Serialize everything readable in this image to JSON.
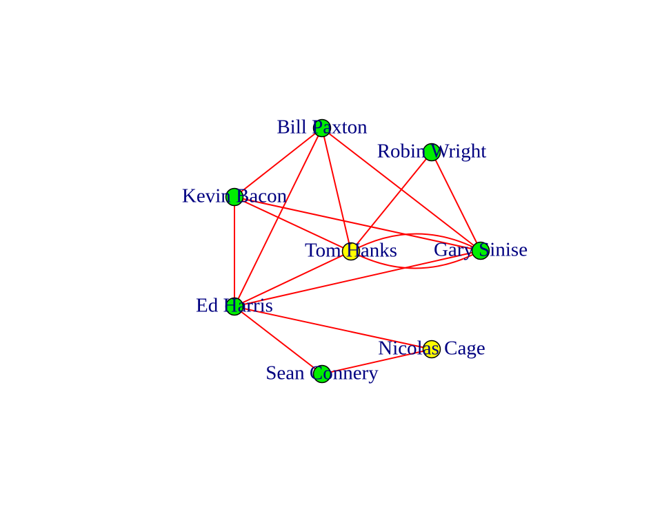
{
  "network": {
    "colors": {
      "edge": "#ff0000",
      "label": "#000080",
      "node_default": "#00ee00",
      "node_highlight": "#ffff00",
      "node_border": "#000000"
    },
    "nodes": [
      {
        "id": "bill_paxton",
        "label": "Bill Paxton",
        "color": "#00ee00"
      },
      {
        "id": "robin_wright",
        "label": "Robin Wright",
        "color": "#00ee00"
      },
      {
        "id": "kevin_bacon",
        "label": "Kevin Bacon",
        "color": "#00ee00"
      },
      {
        "id": "tom_hanks",
        "label": "Tom Hanks",
        "color": "#ffff00"
      },
      {
        "id": "gary_sinise",
        "label": "Gary Sinise",
        "color": "#00ee00"
      },
      {
        "id": "ed_harris",
        "label": "Ed Harris",
        "color": "#00ee00"
      },
      {
        "id": "nicolas_cage",
        "label": "Nicolas Cage",
        "color": "#ffff00"
      },
      {
        "id": "sean_connery",
        "label": "Sean Connery",
        "color": "#00ee00"
      }
    ],
    "edges": [
      {
        "source": "bill_paxton",
        "target": "kevin_bacon"
      },
      {
        "source": "bill_paxton",
        "target": "ed_harris"
      },
      {
        "source": "bill_paxton",
        "target": "tom_hanks"
      },
      {
        "source": "bill_paxton",
        "target": "gary_sinise"
      },
      {
        "source": "robin_wright",
        "target": "tom_hanks"
      },
      {
        "source": "robin_wright",
        "target": "gary_sinise"
      },
      {
        "source": "kevin_bacon",
        "target": "ed_harris"
      },
      {
        "source": "kevin_bacon",
        "target": "tom_hanks"
      },
      {
        "source": "kevin_bacon",
        "target": "gary_sinise"
      },
      {
        "source": "tom_hanks",
        "target": "gary_sinise",
        "curved": true
      },
      {
        "source": "gary_sinise",
        "target": "tom_hanks",
        "curved": true
      },
      {
        "source": "tom_hanks",
        "target": "ed_harris"
      },
      {
        "source": "gary_sinise",
        "target": "ed_harris"
      },
      {
        "source": "ed_harris",
        "target": "nicolas_cage"
      },
      {
        "source": "ed_harris",
        "target": "sean_connery"
      },
      {
        "source": "sean_connery",
        "target": "nicolas_cage"
      }
    ]
  }
}
